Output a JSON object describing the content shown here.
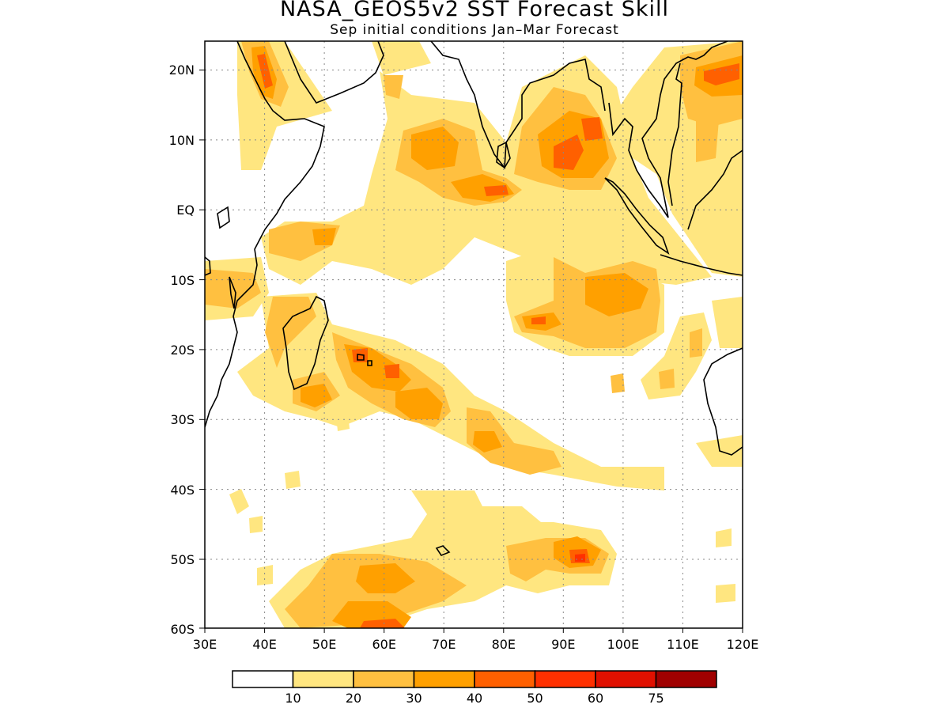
{
  "title": "NASA_GEOS5v2 SST Forecast Skill",
  "subtitle": "Sep initial conditions  Jan–Mar Forecast",
  "map": {
    "lon_range": [
      30,
      120
    ],
    "lat_range": [
      -60,
      24
    ],
    "lon_ticks": [
      "30E",
      "40E",
      "50E",
      "60E",
      "70E",
      "80E",
      "90E",
      "100E",
      "110E",
      "120E"
    ],
    "lat_ticks": [
      "20N",
      "10N",
      "EQ",
      "10S",
      "20S",
      "30S",
      "40S",
      "50S",
      "60S"
    ],
    "grid": true
  },
  "colorbar": {
    "thresholds": [
      "10",
      "20",
      "30",
      "40",
      "50",
      "60",
      "75"
    ],
    "colors": [
      "#ffffff",
      "#ffe680",
      "#ffc040",
      "#ffa000",
      "#ff6000",
      "#ff3000",
      "#e01000",
      "#a00000"
    ]
  }
}
